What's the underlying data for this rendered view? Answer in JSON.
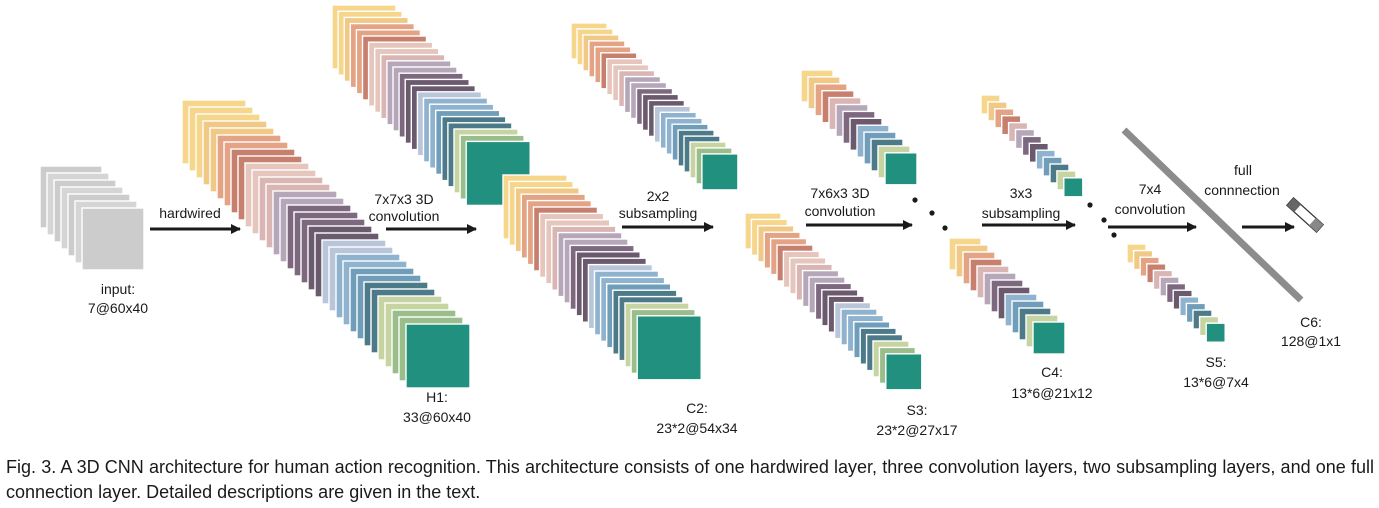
{
  "palette": [
    "#f6d68a",
    "#f0c987",
    "#e3a384",
    "#c8806e",
    "#e5c5bc",
    "#d9b6b4",
    "#b6a6b9",
    "#7d6880",
    "#6b5a6e",
    "#b9c6da",
    "#8fb3cf",
    "#6f9dba",
    "#4d7a88",
    "#c5d4a0",
    "#9abd8c",
    "#22907e"
  ],
  "input_palette": [
    "#cccccc",
    "#d5d5d5"
  ],
  "layers": [
    {
      "id": "input",
      "label": "input:",
      "size": "7@60x40"
    },
    {
      "id": "h1",
      "label": "H1:",
      "size": "33@60x40"
    },
    {
      "id": "c2",
      "label": "C2:",
      "size": "23*2@54x34"
    },
    {
      "id": "s3",
      "label": "S3:",
      "size": "23*2@27x17"
    },
    {
      "id": "c4",
      "label": "C4:",
      "size": "13*6@21x12"
    },
    {
      "id": "s5",
      "label": "S5:",
      "size": "13*6@7x4"
    },
    {
      "id": "c6",
      "label": "C6:",
      "size": "128@1x1"
    }
  ],
  "operations": [
    {
      "id": "hardwired",
      "lines": [
        "hardwired"
      ]
    },
    {
      "id": "conv1",
      "lines": [
        "7x7x3 3D",
        "convolution"
      ]
    },
    {
      "id": "sub1",
      "lines": [
        "2x2",
        "subsampling"
      ]
    },
    {
      "id": "conv2",
      "lines": [
        "7x6x3 3D",
        "convolution"
      ]
    },
    {
      "id": "sub2",
      "lines": [
        "3x3",
        "subsampling"
      ]
    },
    {
      "id": "conv3",
      "lines": [
        "7x4",
        "convolution"
      ]
    },
    {
      "id": "full",
      "lines": [
        "full",
        "connnection"
      ]
    }
  ],
  "caption": "Fig. 3. A 3D CNN architecture for human action recognition. This architecture consists of one hardwired layer, three convolution layers, two subsampling layers, and one full connection layer. Detailed descriptions are given in the text."
}
